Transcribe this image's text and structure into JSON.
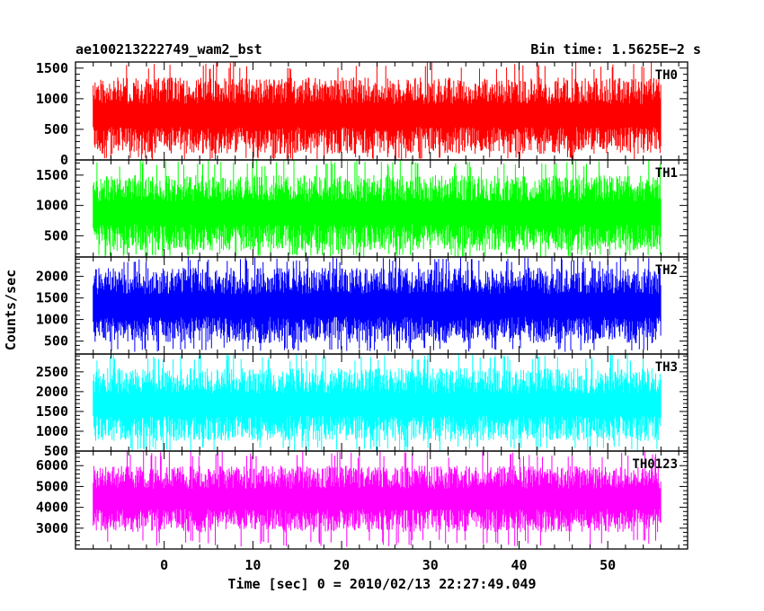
{
  "header": {
    "title": "ae100213222749_wam2_bst",
    "bin_time": "Bin time: 1.5625E−2 s"
  },
  "chart_data": {
    "type": "line",
    "title": "ae100213222749_wam2_bst",
    "xlabel": "Time [sec] 0 = 2010/02/13 22:27:49.049",
    "ylabel": "Counts/sec",
    "xlim": [
      -10,
      59
    ],
    "x_range": [
      -8,
      56
    ],
    "x_ticks": [
      0,
      10,
      20,
      30,
      40,
      50
    ],
    "x_tick_labels": [
      "0",
      "10",
      "20",
      "30",
      "40",
      "50"
    ],
    "grid": false,
    "series": [
      {
        "name": "TH0",
        "color": "#ff0000",
        "ylim": [
          0,
          1600
        ],
        "y_ticks": [
          0,
          500,
          1000,
          1500
        ],
        "y_tick_labels": [
          "0",
          "500",
          "1000",
          "1500"
        ],
        "y_typical_min": 100,
        "y_typical_max": 1350,
        "y_spike_min": 0,
        "y_spike_max": 1600
      },
      {
        "name": "TH1",
        "color": "#00ff00",
        "ylim": [
          150,
          1750
        ],
        "y_ticks": [
          500,
          1000,
          1500
        ],
        "y_tick_labels": [
          "500",
          "1000",
          "1500"
        ],
        "y_typical_min": 250,
        "y_typical_max": 1500,
        "y_spike_min": 150,
        "y_spike_max": 1750
      },
      {
        "name": "TH2",
        "color": "#0000ff",
        "ylim": [
          200,
          2450
        ],
        "y_ticks": [
          500,
          1000,
          1500,
          2000
        ],
        "y_tick_labels": [
          "500",
          "1000",
          "1500",
          "2000"
        ],
        "y_typical_min": 450,
        "y_typical_max": 2200,
        "y_spike_min": 250,
        "y_spike_max": 2450
      },
      {
        "name": "TH3",
        "color": "#00ffff",
        "ylim": [
          500,
          2950
        ],
        "y_ticks": [
          500,
          1000,
          1500,
          2000,
          2500
        ],
        "y_tick_labels": [
          "500",
          "1000",
          "1500",
          "2000",
          "2500"
        ],
        "y_typical_min": 750,
        "y_typical_max": 2600,
        "y_spike_min": 500,
        "y_spike_max": 2950
      },
      {
        "name": "TH0123",
        "color": "#ff00ff",
        "ylim": [
          2000,
          6700
        ],
        "y_ticks": [
          3000,
          4000,
          5000,
          6000
        ],
        "y_tick_labels": [
          "3000",
          "4000",
          "5000",
          "6000"
        ],
        "y_typical_min": 2800,
        "y_typical_max": 6000,
        "y_spike_min": 2100,
        "y_spike_max": 6700
      }
    ]
  }
}
